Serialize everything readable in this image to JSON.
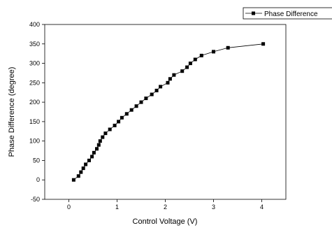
{
  "chart_data": {
    "type": "line",
    "title": "",
    "xlabel": "Control Voltage (V)",
    "ylabel": "Phase Difference (degree)",
    "xlim": [
      -0.5,
      4.5
    ],
    "ylim": [
      -50,
      400
    ],
    "x_ticks": [
      0,
      1,
      2,
      3,
      4
    ],
    "y_ticks": [
      -50,
      0,
      50,
      100,
      150,
      200,
      250,
      300,
      350,
      400
    ],
    "grid": false,
    "legend_position": "top-right",
    "series": [
      {
        "name": "Phase Difference",
        "marker": "square",
        "color": "#000000",
        "x": [
          0.1,
          0.2,
          0.25,
          0.3,
          0.35,
          0.42,
          0.48,
          0.52,
          0.58,
          0.62,
          0.65,
          0.7,
          0.76,
          0.85,
          0.95,
          1.03,
          1.1,
          1.2,
          1.3,
          1.4,
          1.5,
          1.6,
          1.72,
          1.82,
          1.9,
          2.05,
          2.1,
          2.18,
          2.35,
          2.45,
          2.52,
          2.62,
          2.75,
          3.0,
          3.3,
          4.03
        ],
        "y": [
          0,
          10,
          20,
          30,
          40,
          50,
          60,
          70,
          80,
          90,
          100,
          110,
          120,
          130,
          140,
          150,
          160,
          170,
          180,
          190,
          200,
          210,
          220,
          230,
          240,
          250,
          260,
          270,
          280,
          290,
          300,
          310,
          320,
          330,
          340,
          350
        ]
      }
    ]
  }
}
